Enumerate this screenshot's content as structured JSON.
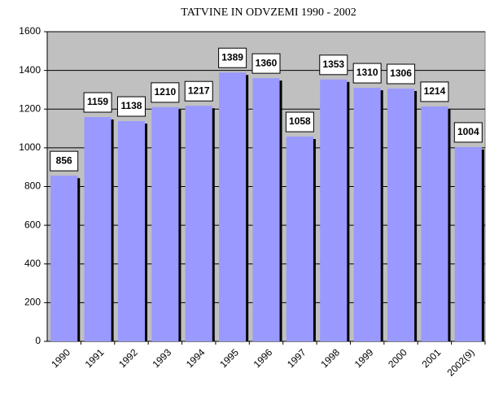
{
  "chart_data": {
    "type": "bar",
    "title": "TATVINE IN ODVZEMI 1990 - 2002",
    "categories": [
      "1990",
      "1991",
      "1992",
      "1993",
      "1994",
      "1995",
      "1996",
      "1997",
      "1998",
      "1999",
      "2000",
      "2001",
      "2002(9)"
    ],
    "values": [
      856,
      1159,
      1138,
      1210,
      1217,
      1389,
      1360,
      1058,
      1353,
      1310,
      1306,
      1214,
      1004
    ],
    "color": "#9999ff",
    "ylim": [
      0,
      1600
    ],
    "yticks": [
      0,
      200,
      400,
      600,
      800,
      1000,
      1200,
      1400,
      1600
    ],
    "grid": true
  }
}
